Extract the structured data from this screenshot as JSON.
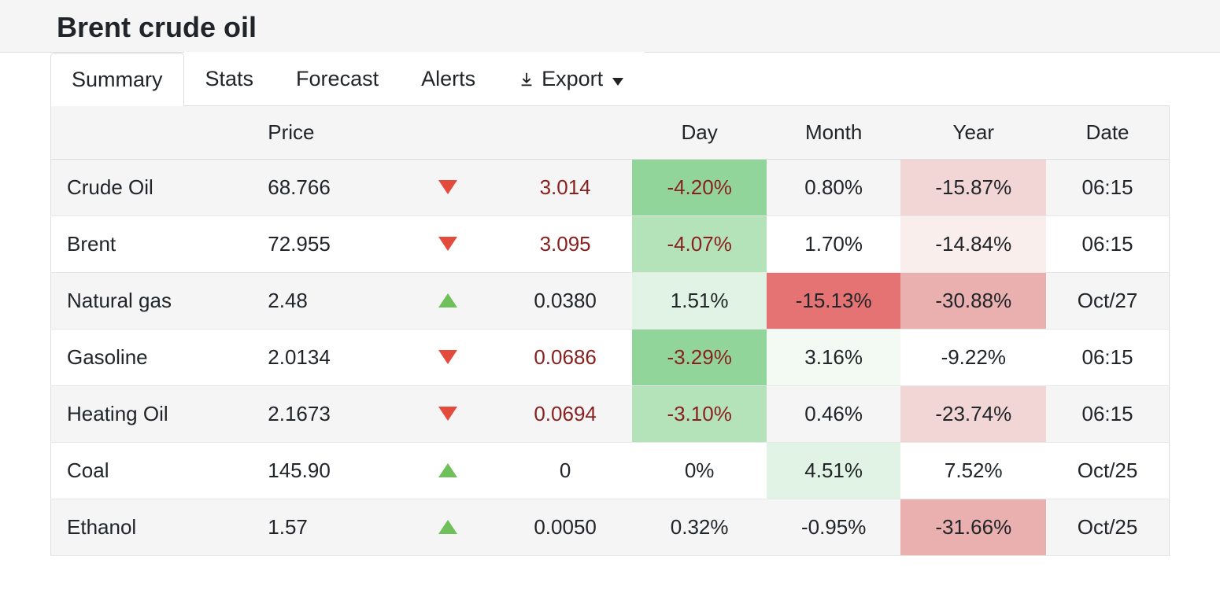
{
  "header": {
    "title": "Brent crude oil"
  },
  "tabs": [
    {
      "label": "Summary",
      "active": true
    },
    {
      "label": "Stats",
      "active": false
    },
    {
      "label": "Forecast",
      "active": false
    },
    {
      "label": "Alerts",
      "active": false
    }
  ],
  "export": {
    "label": "Export"
  },
  "table": {
    "columns": [
      "",
      "Price",
      "",
      "",
      "Day",
      "Month",
      "Year",
      "Date"
    ],
    "highlight_colors": {
      "green_strong": "#92d59a",
      "green_med": "#b4e2b9",
      "green_light": "#e1f3e4",
      "green_faint": "#f2faf3",
      "red_strong": "#e57373",
      "red_med": "#e9b0af",
      "red_light": "#f2d6d5",
      "red_faint": "#faeeed",
      "none": ""
    },
    "rows": [
      {
        "name": "Crude Oil",
        "price": "68.766",
        "dir": "down",
        "chg": "3.014",
        "day": "-4.20%",
        "day_hl": "green_strong",
        "month": "0.80%",
        "month_hl": "none",
        "year": "-15.87%",
        "year_hl": "red_light",
        "date": "06:15"
      },
      {
        "name": "Brent",
        "price": "72.955",
        "dir": "down",
        "chg": "3.095",
        "day": "-4.07%",
        "day_hl": "green_med",
        "month": "1.70%",
        "month_hl": "none",
        "year": "-14.84%",
        "year_hl": "red_faint",
        "date": "06:15"
      },
      {
        "name": "Natural gas",
        "price": "2.48",
        "dir": "up",
        "chg": "0.0380",
        "day": "1.51%",
        "day_hl": "green_light",
        "month": "-15.13%",
        "month_hl": "red_strong",
        "year": "-30.88%",
        "year_hl": "red_med",
        "date": "Oct/27"
      },
      {
        "name": "Gasoline",
        "price": "2.0134",
        "dir": "down",
        "chg": "0.0686",
        "day": "-3.29%",
        "day_hl": "green_strong",
        "month": "3.16%",
        "month_hl": "green_faint",
        "year": "-9.22%",
        "year_hl": "none",
        "date": "06:15"
      },
      {
        "name": "Heating Oil",
        "price": "2.1673",
        "dir": "down",
        "chg": "0.0694",
        "day": "-3.10%",
        "day_hl": "green_med",
        "month": "0.46%",
        "month_hl": "none",
        "year": "-23.74%",
        "year_hl": "red_light",
        "date": "06:15"
      },
      {
        "name": "Coal",
        "price": "145.90",
        "dir": "up",
        "chg": "0",
        "day": "0%",
        "day_hl": "none",
        "month": "4.51%",
        "month_hl": "green_light",
        "year": "7.52%",
        "year_hl": "none",
        "date": "Oct/25"
      },
      {
        "name": "Ethanol",
        "price": "1.57",
        "dir": "up",
        "chg": "0.0050",
        "day": "0.32%",
        "day_hl": "none",
        "month": "-0.95%",
        "month_hl": "none",
        "year": "-31.66%",
        "year_hl": "red_med",
        "date": "Oct/25"
      }
    ]
  }
}
